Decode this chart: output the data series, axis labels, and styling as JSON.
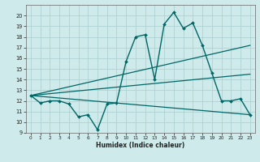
{
  "xlabel": "Humidex (Indice chaleur)",
  "ylabel": "",
  "xlim": [
    -0.5,
    23.5
  ],
  "ylim": [
    9,
    21
  ],
  "yticks": [
    9,
    10,
    11,
    12,
    13,
    14,
    15,
    16,
    17,
    18,
    19,
    20
  ],
  "xticks": [
    0,
    1,
    2,
    3,
    4,
    5,
    6,
    7,
    8,
    9,
    10,
    11,
    12,
    13,
    14,
    15,
    16,
    17,
    18,
    19,
    20,
    21,
    22,
    23
  ],
  "bg_color": "#ceeaea",
  "grid_color": "#aacece",
  "line_color": "#006666",
  "series_main": {
    "x": [
      0,
      1,
      2,
      3,
      4,
      5,
      6,
      7,
      8,
      9,
      10,
      11,
      12,
      13,
      14,
      15,
      16,
      17,
      18,
      19,
      20,
      21,
      22,
      23
    ],
    "y": [
      12.5,
      11.8,
      12.0,
      12.0,
      11.7,
      10.5,
      10.7,
      9.3,
      11.7,
      11.8,
      15.7,
      18.0,
      18.2,
      14.0,
      19.2,
      20.3,
      18.8,
      19.3,
      17.2,
      14.6,
      12.0,
      12.0,
      12.2,
      10.7
    ],
    "marker": "D",
    "markersize": 2.0,
    "linewidth": 1.0
  },
  "series_lines": [
    {
      "x": [
        0,
        23
      ],
      "y": [
        12.5,
        17.2
      ],
      "linewidth": 0.9
    },
    {
      "x": [
        0,
        23
      ],
      "y": [
        12.5,
        14.5
      ],
      "linewidth": 0.9
    },
    {
      "x": [
        0,
        23
      ],
      "y": [
        12.5,
        10.7
      ],
      "linewidth": 0.9
    }
  ]
}
